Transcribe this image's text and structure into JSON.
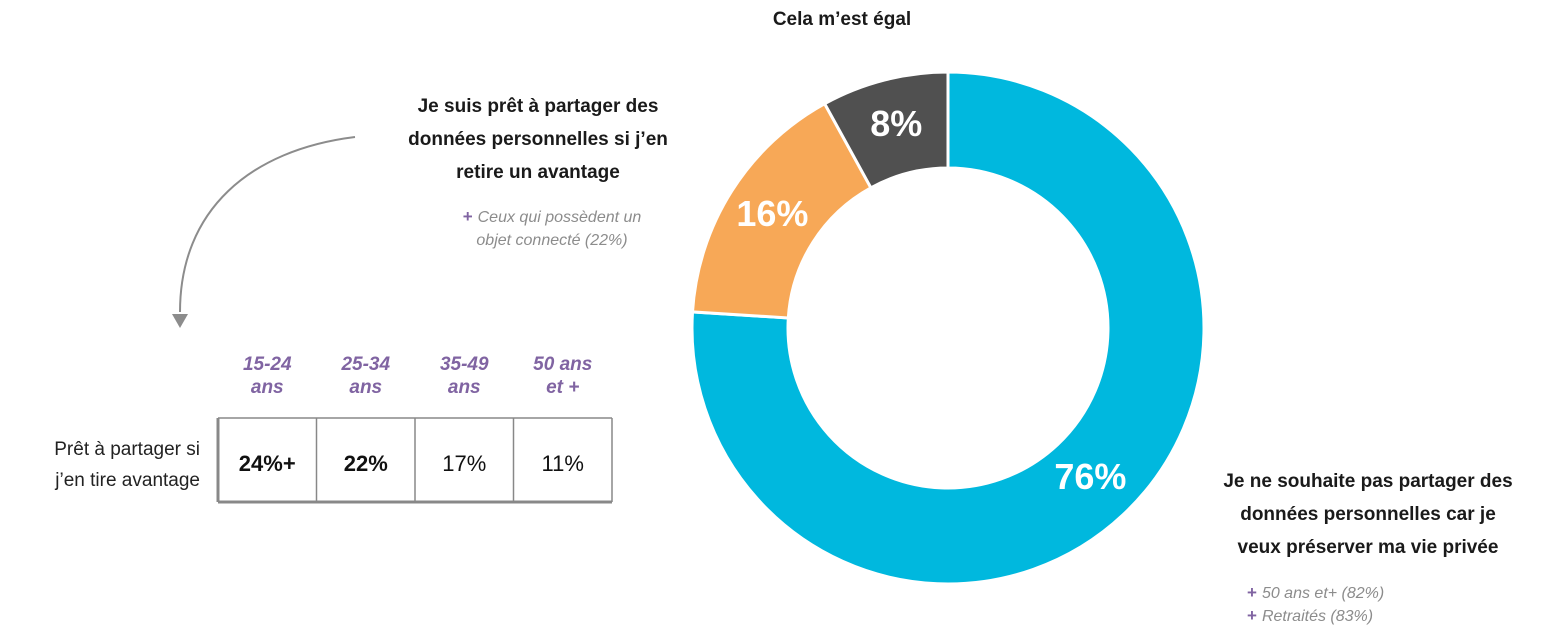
{
  "chart_data": {
    "type": "donut",
    "categories": [
      [
        "Je ne souhaite pas partager des",
        "données personnelles car je",
        "veux préserver ma vie privée"
      ],
      [
        "Je suis prêt à partager des",
        "données personnelles si j’en",
        "retire un avantage"
      ],
      [
        "Cela m’est égal"
      ]
    ],
    "values": [
      76,
      16,
      8
    ],
    "value_labels": [
      "76%",
      "16%",
      "8%"
    ],
    "colors": [
      "#00b8de",
      "#f7a857",
      "#505050"
    ],
    "notes": [
      [
        {
          "marker": "+",
          "text": "50 ans et+ (82%)"
        },
        {
          "marker": "+",
          "text": "Retraités (83%)"
        }
      ],
      [
        {
          "marker": "+",
          "text": "Ceux qui possèdent un"
        },
        {
          "marker": "",
          "text": "objet connecté (22%)"
        }
      ],
      []
    ]
  },
  "table": {
    "columns": [
      [
        "15-24",
        "ans"
      ],
      [
        "25-34",
        "ans"
      ],
      [
        "35-49",
        "ans"
      ],
      [
        "50 ans",
        "et +"
      ]
    ],
    "row_label": [
      "Prêt à partager si",
      "j’en tire avantage"
    ],
    "cells": [
      "24%+",
      "22%",
      "17%",
      "11%"
    ],
    "bold": [
      true,
      true,
      false,
      false
    ]
  }
}
